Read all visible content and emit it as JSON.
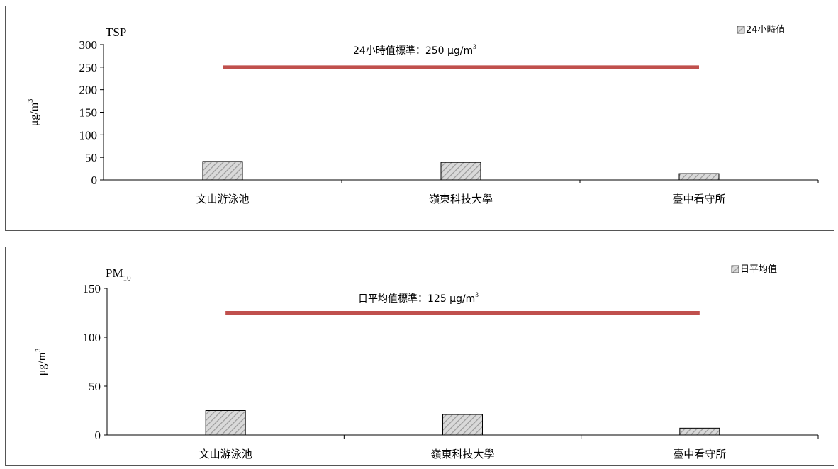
{
  "chart_data": [
    {
      "type": "bar",
      "title": "TSP",
      "ylabel": "μg/m",
      "ylabel_sup": "3",
      "categories": [
        "文山游泳池",
        "嶺東科技大學",
        "臺中看守所"
      ],
      "series": [
        {
          "name": "24小時值",
          "values": [
            41,
            39,
            14
          ]
        }
      ],
      "ylim": [
        0,
        300
      ],
      "yticks": [
        0,
        50,
        100,
        150,
        200,
        250,
        300
      ],
      "standard": {
        "value": 250,
        "label": "24小時值標準：250 μg/m",
        "label_sup": "3",
        "color": "#c0504d"
      },
      "legend": "top-right",
      "grid": false,
      "bar_fill": "#bfbfbf"
    },
    {
      "type": "bar",
      "title": "PM",
      "title_sub": "10",
      "ylabel": "μg/m",
      "ylabel_sup": "3",
      "categories": [
        "文山游泳池",
        "嶺東科技大學",
        "臺中看守所"
      ],
      "series": [
        {
          "name": "日平均值",
          "values": [
            25,
            21,
            7
          ]
        }
      ],
      "ylim": [
        0,
        150
      ],
      "yticks": [
        0,
        50,
        100,
        150
      ],
      "standard": {
        "value": 125,
        "label": "日平均值標準：125 μg/m",
        "label_sup": "3",
        "color": "#c0504d"
      },
      "legend": "top-right",
      "grid": false,
      "bar_fill": "#bfbfbf"
    }
  ]
}
